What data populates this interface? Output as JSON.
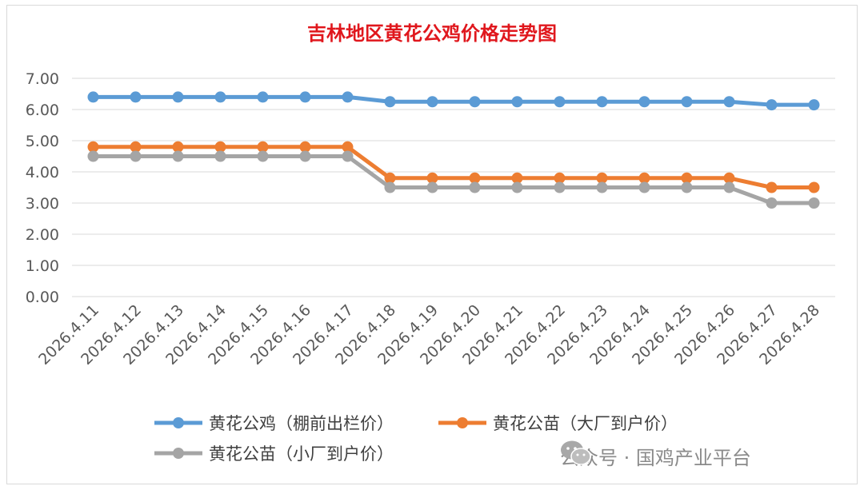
{
  "chart_data": {
    "type": "line",
    "title": "吉林地区黄花公鸡价格走势图",
    "xlabel": "",
    "ylabel": "",
    "ylim": [
      0,
      7
    ],
    "yticks": [
      "0.00",
      "1.00",
      "2.00",
      "3.00",
      "4.00",
      "5.00",
      "6.00",
      "7.00"
    ],
    "grid": true,
    "legend_position": "bottom",
    "categories": [
      "2026.4.11",
      "2026.4.12",
      "2026.4.13",
      "2026.4.14",
      "2026.4.15",
      "2026.4.16",
      "2026.4.17",
      "2026.4.18",
      "2026.4.19",
      "2026.4.20",
      "2026.4.21",
      "2026.4.22",
      "2026.4.23",
      "2026.4.24",
      "2026.4.25",
      "2026.4.26",
      "2026.4.27",
      "2026.4.28"
    ],
    "series": [
      {
        "name": "黄花公鸡（棚前出栏价）",
        "color": "#5b9bd5",
        "values": [
          6.4,
          6.4,
          6.4,
          6.4,
          6.4,
          6.4,
          6.4,
          6.25,
          6.25,
          6.25,
          6.25,
          6.25,
          6.25,
          6.25,
          6.25,
          6.25,
          6.15,
          6.15
        ]
      },
      {
        "name": "黄花公苗（大厂到户价）",
        "color": "#ed7d31",
        "values": [
          4.8,
          4.8,
          4.8,
          4.8,
          4.8,
          4.8,
          4.8,
          3.8,
          3.8,
          3.8,
          3.8,
          3.8,
          3.8,
          3.8,
          3.8,
          3.8,
          3.5,
          3.5
        ]
      },
      {
        "name": "黄花公苗（小厂到户价）",
        "color": "#a5a5a5",
        "values": [
          4.5,
          4.5,
          4.5,
          4.5,
          4.5,
          4.5,
          4.5,
          3.5,
          3.5,
          3.5,
          3.5,
          3.5,
          3.5,
          3.5,
          3.5,
          3.5,
          3.0,
          3.0
        ]
      }
    ]
  },
  "watermark": {
    "text": "公众号 · 国鸡产业平台",
    "icon": "wechat-icon"
  }
}
